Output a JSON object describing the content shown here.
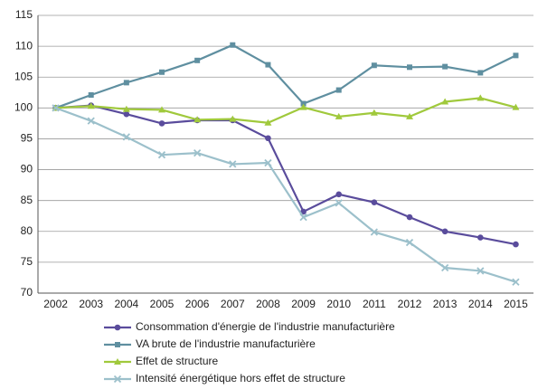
{
  "chart_data": {
    "type": "line",
    "categories": [
      "2002",
      "2003",
      "2004",
      "2005",
      "2006",
      "2007",
      "2008",
      "2009",
      "2010",
      "2011",
      "2012",
      "2013",
      "2014",
      "2015"
    ],
    "series": [
      {
        "name": "Consommation d'énergie de l'industrie manufacturière",
        "color": "#5a4c9c",
        "marker": "circle",
        "values": [
          100,
          100.4,
          99,
          97.5,
          98,
          98,
          95.1,
          83.2,
          86,
          84.7,
          82.3,
          80,
          79,
          77.9
        ]
      },
      {
        "name": "VA brute de l'industrie manufacturière",
        "color": "#5f8fa0",
        "marker": "square",
        "values": [
          100,
          102.1,
          104.1,
          105.8,
          107.7,
          110.2,
          107,
          100.7,
          102.9,
          106.9,
          106.6,
          106.7,
          105.7,
          108.5
        ]
      },
      {
        "name": "Effet de structure",
        "color": "#a0c93c",
        "marker": "triangle",
        "values": [
          100,
          100.3,
          99.8,
          99.7,
          98.1,
          98.2,
          97.6,
          100.1,
          98.6,
          99.2,
          98.6,
          101,
          101.6,
          100.1
        ]
      },
      {
        "name": "Intensité énergétique hors effet de structure",
        "color": "#9cc0cb",
        "marker": "x",
        "values": [
          100,
          97.9,
          95.3,
          92.4,
          92.7,
          90.9,
          91.1,
          82.3,
          84.6,
          79.9,
          78.2,
          74.1,
          73.6,
          71.8
        ]
      }
    ],
    "ylim": [
      70,
      115
    ],
    "yticks": [
      70,
      75,
      80,
      85,
      90,
      95,
      100,
      105,
      110,
      115
    ],
    "grid": true
  }
}
